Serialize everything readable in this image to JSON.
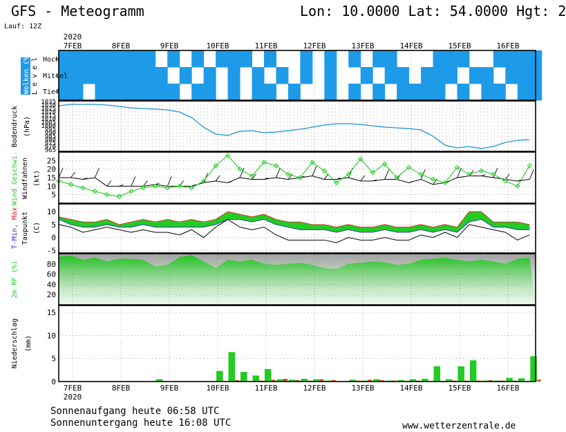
{
  "header": {
    "title": "GFS - Meteogramm",
    "location": "Lon: 10.0000 Lat: 54.0000 Hgt: 2",
    "run": "Lauf: 12Z"
  },
  "footer": {
    "sunrise": "Sonnenaufgang heute 06:58 UTC",
    "sunset": "Sonnenuntergang heute 16:08 UTC",
    "website": "www.wetterzentrale.de"
  },
  "colors": {
    "cloud": "#1e9be8",
    "pressure": "#1e90d8",
    "wind_speed": "#22cc22",
    "wind_barb": "#000000",
    "tmin": "#3333cc",
    "tmax": "#dd2222",
    "temp_fill": "#22cc22",
    "temp_fill_top": "#a8d84a",
    "humidity": "#22cc22",
    "precip": "#22cc22",
    "precip_conv": "#cc5522"
  },
  "chart_data": [
    {
      "type": "heatmap",
      "panel": "clouds",
      "ylabel": "Wolken (%)",
      "side_label": "Level",
      "levels": [
        "Hoch",
        "Mittel",
        "Tief"
      ],
      "x_days": [
        "7FEB",
        "8FEB",
        "9FEB",
        "10FEB",
        "11FEB",
        "12FEB",
        "13FEB",
        "14FEB",
        "15FEB",
        "16FEB"
      ],
      "year": "2020",
      "time_step_hours": 6,
      "hoch": [
        1,
        1,
        1,
        1,
        1,
        1,
        1,
        1,
        0,
        1,
        0,
        1,
        0,
        1,
        1,
        1,
        0,
        1,
        0,
        0,
        1,
        0,
        1,
        0,
        1,
        0,
        1,
        1,
        0,
        0,
        0,
        1,
        1,
        1,
        0,
        0,
        1,
        1,
        1,
        1
      ],
      "mittel": [
        1,
        1,
        1,
        1,
        1,
        1,
        1,
        1,
        1,
        0,
        1,
        0,
        1,
        0,
        1,
        0,
        1,
        0,
        1,
        0,
        1,
        0,
        1,
        0,
        0,
        1,
        0,
        1,
        1,
        0,
        1,
        1,
        1,
        0,
        1,
        1,
        0,
        1,
        1,
        1
      ],
      "tief": [
        1,
        1,
        0,
        1,
        1,
        1,
        1,
        1,
        1,
        1,
        0,
        1,
        1,
        0,
        1,
        0,
        1,
        1,
        0,
        1,
        0,
        0,
        1,
        0,
        1,
        0,
        1,
        0,
        1,
        1,
        1,
        1,
        0,
        1,
        0,
        1,
        1,
        0,
        1,
        1
      ]
    },
    {
      "type": "line",
      "panel": "pressure",
      "ylabel": "Bodendruck (hPa)",
      "yticks": [
        965,
        970,
        975,
        980,
        985,
        990,
        995,
        1000,
        1005,
        1010,
        1015,
        1020,
        1025,
        1030,
        1035
      ],
      "ylim": [
        963,
        1036
      ],
      "x_hours": [
        0,
        6,
        12,
        18,
        24,
        30,
        36,
        42,
        48,
        54,
        60,
        66,
        72,
        78,
        84,
        90,
        96,
        102,
        108,
        114,
        120,
        126,
        132,
        138,
        144,
        150,
        156,
        162,
        168,
        174,
        180,
        186,
        192,
        198,
        204,
        210,
        216,
        222,
        228,
        234
      ],
      "values": [
        1029,
        1031,
        1031,
        1031,
        1030,
        1028,
        1026,
        1025,
        1024,
        1023,
        1020,
        1012,
        998,
        988,
        986,
        992,
        993,
        990,
        991,
        993,
        995,
        998,
        1001,
        1003,
        1003,
        1002,
        1000,
        998,
        997,
        996,
        994,
        985,
        972,
        968,
        970,
        967,
        970,
        976,
        979,
        980
      ]
    },
    {
      "type": "line",
      "panel": "wind",
      "ylabel_green": "Wind Geschwi.",
      "ylabel_black": "Windfahnen",
      "unit": "(kt)",
      "yticks": [
        5,
        10,
        15,
        20,
        25
      ],
      "ylim": [
        0,
        30
      ],
      "x_hours": [
        0,
        6,
        12,
        18,
        24,
        30,
        36,
        42,
        48,
        54,
        60,
        66,
        72,
        78,
        84,
        90,
        96,
        102,
        108,
        114,
        120,
        126,
        132,
        138,
        144,
        150,
        156,
        162,
        168,
        174,
        180,
        186,
        192,
        198,
        204,
        210,
        216,
        222,
        228,
        234
      ],
      "speed": [
        13,
        11,
        9,
        7,
        5,
        4,
        7,
        9,
        10,
        9,
        10,
        9,
        13,
        22,
        28,
        20,
        16,
        24,
        22,
        17,
        15,
        24,
        19,
        12,
        17,
        26,
        18,
        23,
        15,
        21,
        17,
        14,
        12,
        21,
        17,
        19,
        17,
        13,
        10,
        22
      ],
      "barb_level": [
        15,
        15,
        14,
        15,
        10,
        10,
        10,
        10,
        11,
        10,
        10,
        10,
        12,
        13,
        12,
        15,
        14,
        14,
        15,
        14,
        15,
        16,
        14,
        14,
        15,
        13,
        13,
        14,
        14,
        12,
        14,
        11,
        12,
        15,
        16,
        16,
        15,
        14,
        13,
        14
      ]
    },
    {
      "type": "area",
      "panel": "temperature",
      "ylabel_tmin": "T-Min,",
      "ylabel_tmax": "Max",
      "ylabel_dew": "Taupunkt",
      "unit": "(C)",
      "yticks": [
        -5,
        0,
        5,
        10
      ],
      "ylim": [
        -6,
        13
      ],
      "x_hours": [
        0,
        6,
        12,
        18,
        24,
        30,
        36,
        42,
        48,
        54,
        60,
        66,
        72,
        78,
        84,
        90,
        96,
        102,
        108,
        114,
        120,
        126,
        132,
        138,
        144,
        150,
        156,
        162,
        168,
        174,
        180,
        186,
        192,
        198,
        204,
        210,
        216,
        222,
        228,
        234
      ],
      "tmax": [
        8,
        7,
        6,
        6,
        7,
        5,
        6,
        7,
        6,
        7,
        6,
        7,
        6,
        7,
        10,
        9,
        8,
        9,
        7,
        6,
        6,
        5,
        5,
        4,
        5,
        4,
        4,
        5,
        4,
        4,
        5,
        4,
        5,
        4,
        10,
        10,
        6,
        6,
        6,
        5
      ],
      "tmin": [
        7,
        5,
        4,
        4,
        5,
        4,
        4,
        5,
        4,
        4,
        4,
        4,
        4,
        5,
        7,
        7,
        6,
        7,
        5,
        4,
        3,
        3,
        3,
        2,
        3,
        2,
        2,
        3,
        2,
        2,
        3,
        2,
        3,
        2,
        6,
        7,
        4,
        4,
        3,
        3
      ],
      "dewpoint": [
        5,
        4,
        2,
        3,
        4,
        3,
        2,
        3,
        2,
        2,
        1,
        3,
        0,
        4,
        7,
        4,
        3,
        4,
        1,
        -1,
        -1,
        -1,
        -1,
        -2,
        0,
        -1,
        -1,
        0,
        -1,
        -1,
        1,
        0,
        2,
        0,
        5,
        4,
        3,
        2,
        -1,
        1
      ]
    },
    {
      "type": "area",
      "panel": "humidity",
      "ylabel": "2m RF (%)",
      "yticks": [
        20,
        40,
        60,
        80
      ],
      "ylim": [
        0,
        100
      ],
      "x_hours": [
        0,
        6,
        12,
        18,
        24,
        30,
        36,
        42,
        48,
        54,
        60,
        66,
        72,
        78,
        84,
        90,
        96,
        102,
        108,
        114,
        120,
        126,
        132,
        138,
        144,
        150,
        156,
        162,
        168,
        174,
        180,
        186,
        192,
        198,
        204,
        210,
        216,
        222,
        228,
        234
      ],
      "values": [
        94,
        96,
        88,
        92,
        85,
        90,
        90,
        88,
        75,
        78,
        93,
        97,
        85,
        72,
        88,
        85,
        88,
        80,
        78,
        80,
        82,
        78,
        72,
        70,
        80,
        82,
        85,
        83,
        78,
        80,
        88,
        90,
        92,
        88,
        85,
        88,
        85,
        80,
        90,
        92
      ]
    },
    {
      "type": "bar",
      "panel": "precipitation",
      "ylabel": "Niederschlag (mm)",
      "yticks": [
        0,
        5,
        10,
        15
      ],
      "ylim": [
        0,
        16.5
      ],
      "bar_step_hours": 6,
      "x_hours": [
        0,
        6,
        12,
        18,
        24,
        30,
        36,
        42,
        48,
        54,
        60,
        66,
        72,
        78,
        84,
        90,
        96,
        102,
        108,
        114,
        120,
        126,
        132,
        138,
        144,
        150,
        156,
        162,
        168,
        174,
        180,
        186,
        192,
        198,
        204,
        210,
        216,
        222,
        228,
        234
      ],
      "large_scale": [
        0,
        0,
        0,
        0,
        0,
        0,
        0,
        0,
        0.5,
        0,
        0,
        0,
        0,
        2.3,
        6.4,
        2.1,
        1.3,
        2.7,
        0.5,
        0.4,
        0.6,
        0.5,
        0.2,
        0.1,
        0.4,
        0.2,
        0.5,
        0.2,
        0.3,
        0.5,
        0.6,
        3.3,
        0.5,
        3.3,
        4.6,
        0.2,
        0.2,
        0.8,
        0.7,
        5.5
      ],
      "convective": [
        0,
        0,
        0,
        0,
        0,
        0,
        0,
        0,
        0,
        0,
        0,
        0,
        0,
        0,
        0.3,
        0.1,
        0.2,
        0.4,
        0.6,
        0.3,
        0.2,
        0.5,
        0.3,
        0.1,
        0.2,
        0.4,
        0.3,
        0.2,
        0.1,
        0.2,
        0.1,
        0.1,
        0.2,
        0.2,
        0.2,
        0.3,
        0.2,
        0.2,
        0.1,
        0.4
      ]
    }
  ]
}
